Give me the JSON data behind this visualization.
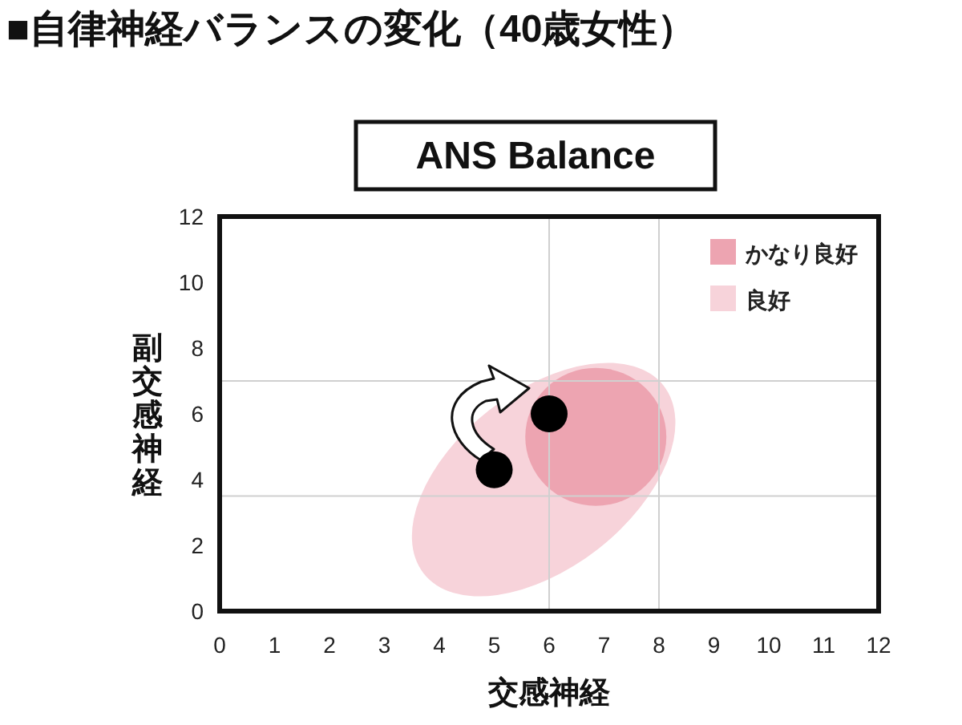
{
  "chart_data": {
    "type": "scatter",
    "title": "■自律神経バランスの変化（40歳女性）",
    "subtitle": "ANS Balance",
    "xlabel": "交感神経",
    "ylabel": "副交感神経",
    "x": [
      5,
      6
    ],
    "series": [
      {
        "color": "#000000",
        "values": [
          4.3,
          6
        ]
      }
    ],
    "marker": "circle",
    "xlim": [
      0,
      12
    ],
    "ylim": [
      0,
      12
    ],
    "xticks": [
      0,
      1,
      2,
      3,
      4,
      5,
      6,
      7,
      8,
      9,
      10,
      11,
      12
    ],
    "yticks": [
      0,
      2,
      4,
      6,
      8,
      10,
      12
    ],
    "ref_lines": [
      {
        "axis": "x",
        "value": 6,
        "color": "#d0d0d0"
      },
      {
        "axis": "x",
        "value": 8,
        "color": "#d0d0d0"
      },
      {
        "axis": "y",
        "value": 3.5,
        "color": "#d0d0d0"
      },
      {
        "axis": "y",
        "value": 7,
        "color": "#d0d0d0"
      }
    ],
    "annotations": [
      "かなり良好",
      "良好"
    ],
    "grid": false
  }
}
